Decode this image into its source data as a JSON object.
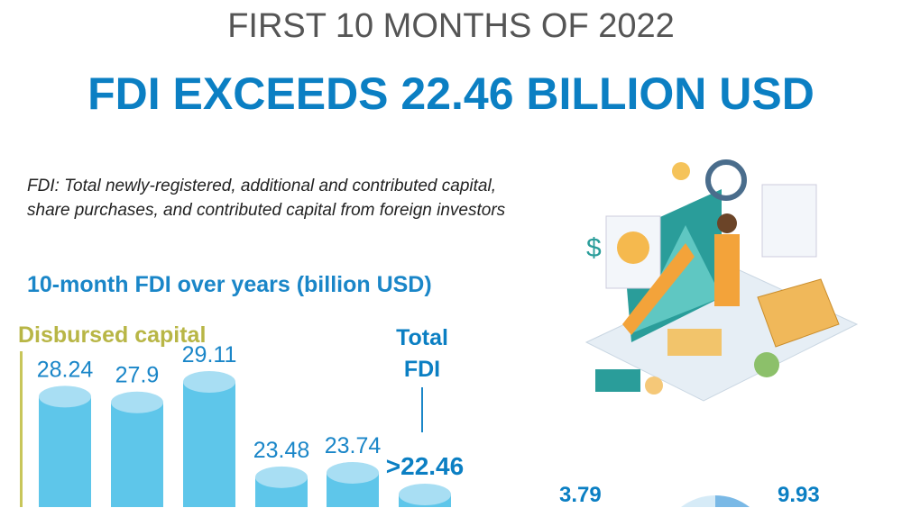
{
  "header": {
    "kicker": "FIRST 10 MONTHS OF 2022",
    "title": "FDI EXCEEDS 22.46 BILLION USD"
  },
  "definition": [
    "FDI: Total newly-registered, additional and contributed capital,",
    "share purchases, and contributed capital from foreign investors"
  ],
  "chart_data": {
    "type": "bar",
    "title": "10-month FDI over years (billion USD)",
    "group_label": "Disbursed capital",
    "total_label": [
      "Total",
      "FDI"
    ],
    "values": [
      28.24,
      27.9,
      29.11,
      23.48,
      23.74,
      22.46
    ],
    "value_labels": [
      "28.24",
      "27.9",
      "29.11",
      "23.48",
      "23.74",
      ">22.46"
    ],
    "colors": {
      "bar": "#5ec6ea",
      "top": "#a8def3",
      "label": "#1a86c8"
    }
  },
  "pie": {
    "labels": [
      "3.79",
      "9.93"
    ],
    "values": [
      3.79,
      9.93
    ]
  },
  "colors": {
    "title": "#0b7fc3",
    "kicker": "#555555",
    "olive": "#b8b646"
  }
}
